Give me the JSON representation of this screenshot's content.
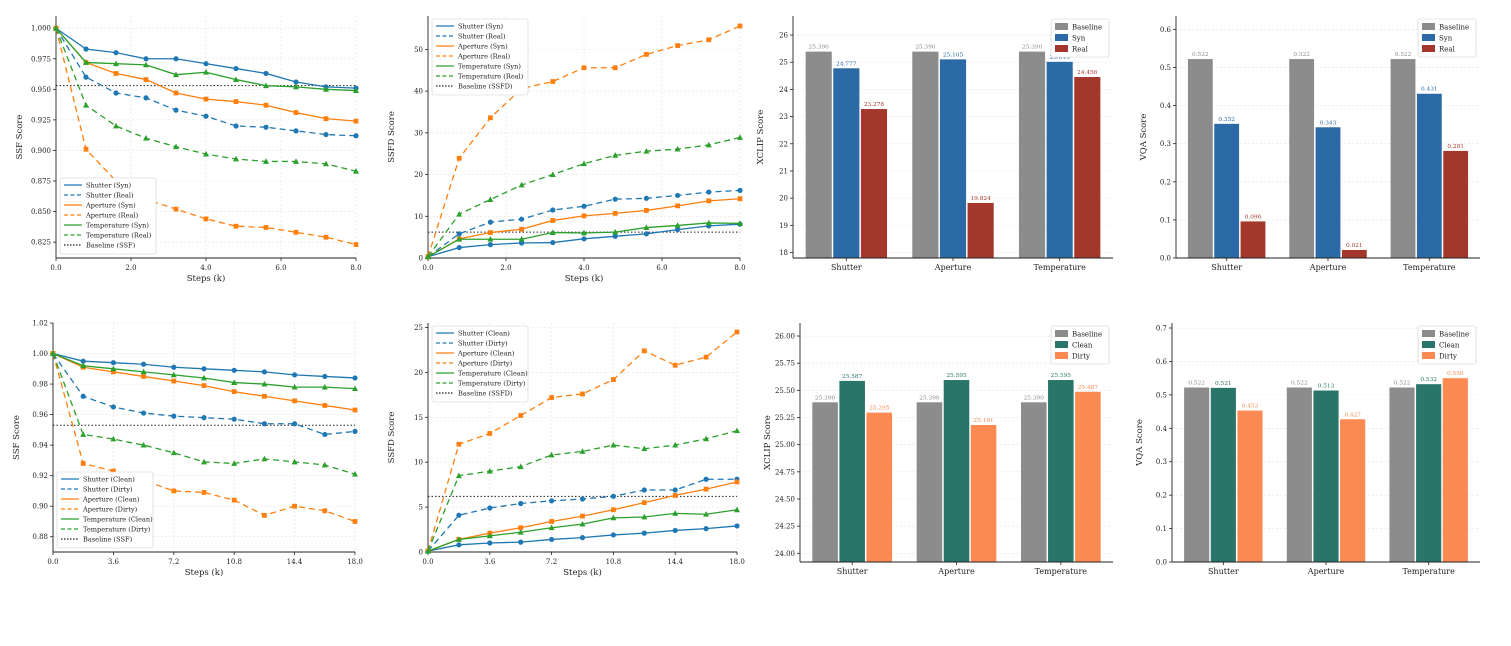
{
  "colors": {
    "blue": "#1f77b4",
    "orange": "#ff7f0e",
    "green": "#2ca02c",
    "baseline_line": "#222222",
    "bar_baseline": "#8c8c8c",
    "bar_syn": "#2b6aa6",
    "bar_real": "#a3372b",
    "bar_clean": "#2a756a",
    "bar_dirty": "#fd8a52"
  },
  "chart_data": [
    {
      "type": "line",
      "xlabel": "Steps (k)",
      "ylabel": "SSF Score",
      "xlim": [
        0,
        8
      ],
      "ylim": [
        0.812,
        1.01
      ],
      "xticks": [
        0,
        2,
        4,
        6,
        8
      ],
      "xtick_labels": [
        "0.0",
        "2.0",
        "4.0",
        "6.0",
        "8.0"
      ],
      "yticks": [
        0.825,
        0.85,
        0.875,
        0.9,
        0.925,
        0.95,
        0.975,
        1.0
      ],
      "ytick_labels": [
        "0.825",
        "0.850",
        "0.875",
        "0.900",
        "0.925",
        "0.950",
        "0.975",
        "1.000"
      ],
      "x": [
        0,
        0.8,
        1.6,
        2.4,
        3.2,
        4.0,
        4.8,
        5.6,
        6.4,
        7.2,
        8.0
      ],
      "series": [
        {
          "name": "Shutter (Syn)",
          "color": "blue",
          "dash": "solid",
          "marker": "circle",
          "values": [
            1.0,
            0.983,
            0.98,
            0.975,
            0.975,
            0.971,
            0.967,
            0.963,
            0.956,
            0.952,
            0.951
          ]
        },
        {
          "name": "Shutter (Real)",
          "color": "blue",
          "dash": "dashed",
          "marker": "circle",
          "values": [
            1.0,
            0.96,
            0.947,
            0.943,
            0.933,
            0.928,
            0.92,
            0.919,
            0.916,
            0.913,
            0.912
          ]
        },
        {
          "name": "Aperture (Syn)",
          "color": "orange",
          "dash": "solid",
          "marker": "square",
          "values": [
            1.0,
            0.972,
            0.963,
            0.958,
            0.947,
            0.942,
            0.94,
            0.937,
            0.931,
            0.926,
            0.924
          ]
        },
        {
          "name": "Aperture (Real)",
          "color": "orange",
          "dash": "dashed",
          "marker": "square",
          "values": [
            1.0,
            0.901,
            0.875,
            0.86,
            0.852,
            0.844,
            0.838,
            0.837,
            0.833,
            0.829,
            0.823
          ]
        },
        {
          "name": "Temperature (Syn)",
          "color": "green",
          "dash": "solid",
          "marker": "triangle",
          "values": [
            1.0,
            0.972,
            0.971,
            0.97,
            0.962,
            0.964,
            0.958,
            0.953,
            0.952,
            0.95,
            0.949
          ]
        },
        {
          "name": "Temperature (Real)",
          "color": "green",
          "dash": "dashed",
          "marker": "triangle",
          "values": [
            1.0,
            0.937,
            0.92,
            0.91,
            0.903,
            0.897,
            0.893,
            0.891,
            0.891,
            0.889,
            0.883
          ]
        }
      ],
      "baseline": {
        "name": "Baseline (SSF)",
        "value": 0.953
      },
      "legend": "lower-left"
    },
    {
      "type": "line",
      "xlabel": "Steps (k)",
      "ylabel": "SSFD Score",
      "xlim": [
        0,
        8
      ],
      "ylim": [
        0,
        58
      ],
      "xticks": [
        0,
        2,
        4,
        6,
        8
      ],
      "xtick_labels": [
        "0.0",
        "2.0",
        "4.0",
        "6.0",
        "8.0"
      ],
      "yticks": [
        0,
        10,
        20,
        30,
        40,
        50
      ],
      "ytick_labels": [
        "0",
        "10",
        "20",
        "30",
        "40",
        "50"
      ],
      "x": [
        0,
        0.8,
        1.6,
        2.4,
        3.2,
        4.0,
        4.8,
        5.6,
        6.4,
        7.2,
        8.0
      ],
      "series": [
        {
          "name": "Shutter (Syn)",
          "color": "blue",
          "dash": "solid",
          "marker": "circle",
          "values": [
            0.3,
            2.5,
            3.2,
            3.6,
            3.7,
            4.6,
            5.2,
            5.8,
            6.8,
            7.7,
            8.1
          ]
        },
        {
          "name": "Shutter (Real)",
          "color": "blue",
          "dash": "dashed",
          "marker": "circle",
          "values": [
            0.3,
            5.8,
            8.6,
            9.3,
            11.5,
            12.4,
            14.1,
            14.3,
            15.0,
            15.8,
            16.2
          ]
        },
        {
          "name": "Aperture (Syn)",
          "color": "orange",
          "dash": "solid",
          "marker": "square",
          "values": [
            0.3,
            4.6,
            6.1,
            6.9,
            9.0,
            10.1,
            10.7,
            11.4,
            12.5,
            13.7,
            14.2
          ]
        },
        {
          "name": "Aperture (Real)",
          "color": "orange",
          "dash": "dashed",
          "marker": "square",
          "values": [
            0.3,
            23.9,
            33.6,
            40.6,
            42.3,
            45.6,
            45.6,
            48.8,
            50.9,
            52.3,
            55.6
          ]
        },
        {
          "name": "Temperature (Syn)",
          "color": "green",
          "dash": "solid",
          "marker": "triangle",
          "values": [
            0.3,
            4.5,
            4.5,
            4.5,
            6.1,
            6.0,
            6.2,
            7.3,
            7.8,
            8.4,
            8.3
          ]
        },
        {
          "name": "Temperature (Real)",
          "color": "green",
          "dash": "dashed",
          "marker": "triangle",
          "values": [
            0.3,
            10.5,
            14.0,
            17.5,
            20.0,
            22.6,
            24.6,
            25.6,
            26.1,
            27.1,
            28.9
          ]
        }
      ],
      "baseline": {
        "name": "Baseline (SSFD)",
        "value": 6.2
      },
      "legend": "top-left"
    },
    {
      "type": "bar",
      "ylabel": "XCLIP Score",
      "ylim": [
        17.8,
        26.7
      ],
      "yticks": [
        18,
        19,
        20,
        21,
        22,
        23,
        24,
        25,
        26
      ],
      "ytick_labels": [
        "18",
        "19",
        "20",
        "21",
        "22",
        "23",
        "24",
        "25",
        "26"
      ],
      "categories": [
        "Shutter",
        "Aperture",
        "Temperature"
      ],
      "series": [
        {
          "name": "Baseline",
          "color": "bar_baseline",
          "values": [
            25.39,
            25.39,
            25.39
          ],
          "labels": [
            "25.390",
            "25.390",
            "25.390"
          ]
        },
        {
          "name": "Syn",
          "color": "bar_syn",
          "values": [
            24.777,
            25.105,
            25.015
          ],
          "labels": [
            "24.777",
            "25.105",
            "25.015"
          ]
        },
        {
          "name": "Real",
          "color": "bar_real",
          "values": [
            23.278,
            19.824,
            24.456
          ],
          "labels": [
            "23.278",
            "19.824",
            "24.456"
          ]
        }
      ],
      "legend": "top-right"
    },
    {
      "type": "bar",
      "ylabel": "VQA Score",
      "ylim": [
        0,
        0.635
      ],
      "yticks": [
        0,
        0.1,
        0.2,
        0.3,
        0.4,
        0.5,
        0.6
      ],
      "ytick_labels": [
        "0.0",
        "0.1",
        "0.2",
        "0.3",
        "0.4",
        "0.5",
        "0.6"
      ],
      "categories": [
        "Shutter",
        "Aperture",
        "Temperature"
      ],
      "series": [
        {
          "name": "Baseline",
          "color": "bar_baseline",
          "values": [
            0.522,
            0.522,
            0.522
          ],
          "labels": [
            "0.522",
            "0.522",
            "0.522"
          ]
        },
        {
          "name": "Syn",
          "color": "bar_syn",
          "values": [
            0.352,
            0.343,
            0.431
          ],
          "labels": [
            "0.352",
            "0.343",
            "0.431"
          ]
        },
        {
          "name": "Real",
          "color": "bar_real",
          "values": [
            0.096,
            0.021,
            0.281
          ],
          "labels": [
            "0.096",
            "0.021",
            "0.281"
          ]
        }
      ],
      "legend": "top-right"
    },
    {
      "type": "line",
      "xlabel": "Steps (k)",
      "ylabel": "SSF Score",
      "xlim": [
        0,
        18
      ],
      "ylim": [
        0.87,
        1.02
      ],
      "xticks": [
        0,
        3.6,
        7.2,
        10.8,
        14.4,
        18
      ],
      "xtick_labels": [
        "0.0",
        "3.6",
        "7.2",
        "10.8",
        "14.4",
        "18.0"
      ],
      "yticks": [
        0.88,
        0.9,
        0.92,
        0.94,
        0.96,
        0.98,
        1.0,
        1.02
      ],
      "ytick_labels": [
        "0.88",
        "0.90",
        "0.92",
        "0.94",
        "0.96",
        "0.98",
        "1.00",
        "1.02"
      ],
      "x": [
        0,
        1.8,
        3.6,
        5.4,
        7.2,
        9.0,
        10.8,
        12.6,
        14.4,
        16.2,
        18.0
      ],
      "series": [
        {
          "name": "Shutter (Clean)",
          "color": "blue",
          "dash": "solid",
          "marker": "circle",
          "values": [
            1.0,
            0.995,
            0.994,
            0.993,
            0.991,
            0.99,
            0.989,
            0.988,
            0.986,
            0.985,
            0.984
          ]
        },
        {
          "name": "Shutter (Dirty)",
          "color": "blue",
          "dash": "dashed",
          "marker": "circle",
          "values": [
            1.0,
            0.972,
            0.965,
            0.961,
            0.959,
            0.958,
            0.957,
            0.954,
            0.954,
            0.947,
            0.949
          ]
        },
        {
          "name": "Aperture (Clean)",
          "color": "orange",
          "dash": "solid",
          "marker": "square",
          "values": [
            1.0,
            0.991,
            0.988,
            0.985,
            0.982,
            0.979,
            0.975,
            0.972,
            0.969,
            0.966,
            0.963
          ]
        },
        {
          "name": "Aperture (Dirty)",
          "color": "orange",
          "dash": "dashed",
          "marker": "square",
          "values": [
            1.0,
            0.928,
            0.923,
            0.917,
            0.91,
            0.909,
            0.904,
            0.894,
            0.9,
            0.897,
            0.89
          ]
        },
        {
          "name": "Temperature (Clean)",
          "color": "green",
          "dash": "solid",
          "marker": "triangle",
          "values": [
            1.0,
            0.992,
            0.99,
            0.988,
            0.986,
            0.984,
            0.981,
            0.98,
            0.978,
            0.978,
            0.977
          ]
        },
        {
          "name": "Temperature (Dirty)",
          "color": "green",
          "dash": "dashed",
          "marker": "triangle",
          "values": [
            1.0,
            0.947,
            0.944,
            0.94,
            0.935,
            0.929,
            0.928,
            0.931,
            0.929,
            0.927,
            0.921
          ]
        }
      ],
      "baseline": {
        "name": "Baseline (SSF)",
        "value": 0.953
      },
      "legend": "lower-left"
    },
    {
      "type": "line",
      "xlabel": "Steps (k)",
      "ylabel": "SSFD Score",
      "xlim": [
        0,
        18
      ],
      "ylim": [
        0,
        25.5
      ],
      "xticks": [
        0,
        3.6,
        7.2,
        10.8,
        14.4,
        18
      ],
      "xtick_labels": [
        "0.0",
        "3.6",
        "7.2",
        "10.8",
        "14.4",
        "18.0"
      ],
      "yticks": [
        0,
        5,
        10,
        15,
        20,
        25
      ],
      "ytick_labels": [
        "0",
        "5",
        "10",
        "15",
        "20",
        "25"
      ],
      "x": [
        0,
        1.8,
        3.6,
        5.4,
        7.2,
        9.0,
        10.8,
        12.6,
        14.4,
        16.2,
        18.0
      ],
      "series": [
        {
          "name": "Shutter (Clean)",
          "color": "blue",
          "dash": "solid",
          "marker": "circle",
          "values": [
            0.1,
            0.8,
            1.0,
            1.1,
            1.4,
            1.6,
            1.9,
            2.1,
            2.4,
            2.6,
            2.9
          ]
        },
        {
          "name": "Shutter (Dirty)",
          "color": "blue",
          "dash": "dashed",
          "marker": "circle",
          "values": [
            0.1,
            4.1,
            4.9,
            5.4,
            5.7,
            5.9,
            6.2,
            6.9,
            6.9,
            8.1,
            8.1
          ]
        },
        {
          "name": "Aperture (Clean)",
          "color": "orange",
          "dash": "solid",
          "marker": "square",
          "values": [
            0.1,
            1.4,
            2.1,
            2.7,
            3.4,
            4.0,
            4.7,
            5.5,
            6.3,
            7.0,
            7.8
          ]
        },
        {
          "name": "Aperture (Dirty)",
          "color": "orange",
          "dash": "dashed",
          "marker": "square",
          "values": [
            0.1,
            12.0,
            13.2,
            15.2,
            17.2,
            17.6,
            19.2,
            22.4,
            20.8,
            21.7,
            24.5
          ]
        },
        {
          "name": "Temperature (Clean)",
          "color": "green",
          "dash": "solid",
          "marker": "triangle",
          "values": [
            0.1,
            1.4,
            1.8,
            2.2,
            2.7,
            3.1,
            3.8,
            3.9,
            4.3,
            4.2,
            4.7
          ]
        },
        {
          "name": "Temperature (Dirty)",
          "color": "green",
          "dash": "dashed",
          "marker": "triangle",
          "values": [
            0.1,
            8.5,
            9.0,
            9.5,
            10.8,
            11.2,
            11.9,
            11.5,
            11.9,
            12.6,
            13.5
          ]
        }
      ],
      "baseline": {
        "name": "Baseline (SSFD)",
        "value": 6.2
      },
      "legend": "top-left"
    },
    {
      "type": "bar",
      "ylabel": "XCLIP Score",
      "ylim": [
        23.92,
        26.12
      ],
      "yticks": [
        24.0,
        24.25,
        24.5,
        24.75,
        25.0,
        25.25,
        25.5,
        25.75,
        26.0
      ],
      "ytick_labels": [
        "24.00",
        "24.25",
        "24.50",
        "24.75",
        "25.00",
        "25.25",
        "25.50",
        "25.75",
        "26.00"
      ],
      "categories": [
        "Shutter",
        "Aperture",
        "Temperature"
      ],
      "series": [
        {
          "name": "Baseline",
          "color": "bar_baseline",
          "values": [
            25.39,
            25.39,
            25.39
          ],
          "labels": [
            "25.390",
            "25.390",
            "25.390"
          ]
        },
        {
          "name": "Clean",
          "color": "bar_clean",
          "values": [
            25.587,
            25.595,
            25.595
          ],
          "labels": [
            "25.587",
            "25.595",
            "25.595"
          ]
        },
        {
          "name": "Dirty",
          "color": "bar_dirty",
          "values": [
            25.295,
            25.181,
            25.487
          ],
          "labels": [
            "25.295",
            "25.181",
            "25.487"
          ]
        }
      ],
      "legend": "top-right"
    },
    {
      "type": "bar",
      "ylabel": "VQA Score",
      "ylim": [
        0,
        0.715
      ],
      "yticks": [
        0,
        0.1,
        0.2,
        0.3,
        0.4,
        0.5,
        0.6,
        0.7
      ],
      "ytick_labels": [
        "0.0",
        "0.1",
        "0.2",
        "0.3",
        "0.4",
        "0.5",
        "0.6",
        "0.7"
      ],
      "categories": [
        "Shutter",
        "Aperture",
        "Temperature"
      ],
      "series": [
        {
          "name": "Baseline",
          "color": "bar_baseline",
          "values": [
            0.522,
            0.522,
            0.522
          ],
          "labels": [
            "0.522",
            "0.522",
            "0.522"
          ]
        },
        {
          "name": "Clean",
          "color": "bar_clean",
          "values": [
            0.521,
            0.513,
            0.532
          ],
          "labels": [
            "0.521",
            "0.513",
            "0.532"
          ]
        },
        {
          "name": "Dirty",
          "color": "bar_dirty",
          "values": [
            0.453,
            0.427,
            0.55
          ],
          "labels": [
            "0.453",
            "0.427",
            "0.550"
          ]
        }
      ],
      "legend": "top-right"
    }
  ]
}
